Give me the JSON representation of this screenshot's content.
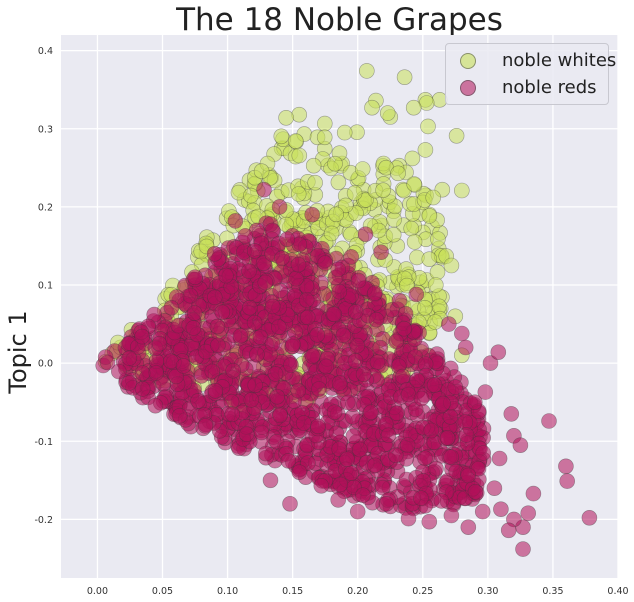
{
  "chart_data": {
    "type": "scatter",
    "title": "The 18 Noble Grapes",
    "xlabel": "",
    "ylabel": "Topic 1",
    "xlim": [
      -0.028,
      0.4
    ],
    "ylim": [
      -0.275,
      0.42
    ],
    "x_ticks": [
      "0.00",
      "0.05",
      "0.10",
      "0.15",
      "0.20",
      "0.25",
      "0.30",
      "0.35",
      "0.40"
    ],
    "y_ticks": [
      "-0.2",
      "-0.1",
      "0.0",
      "0.1",
      "0.2",
      "0.3",
      "0.4"
    ],
    "grid": true,
    "legend_position": "top-right",
    "series": [
      {
        "name": "noble whites",
        "color": "#c8e05a",
        "cloud": {
          "polygon": [
            [
              0.0,
              0.0
            ],
            [
              0.05,
              0.085
            ],
            [
              0.1,
              0.21
            ],
            [
              0.14,
              0.29
            ],
            [
              0.17,
              0.31
            ],
            [
              0.2,
              0.3
            ],
            [
              0.24,
              0.25
            ],
            [
              0.265,
              0.18
            ],
            [
              0.265,
              0.06
            ],
            [
              0.255,
              0.0
            ],
            [
              0.2,
              -0.04
            ],
            [
              0.12,
              -0.06
            ],
            [
              0.05,
              -0.03
            ]
          ],
          "count": 650
        },
        "points": [
          [
            0.207,
            0.374
          ],
          [
            0.236,
            0.366
          ],
          [
            0.214,
            0.336
          ],
          [
            0.211,
            0.327
          ],
          [
            0.225,
            0.315
          ],
          [
            0.252,
            0.337
          ],
          [
            0.263,
            0.337
          ],
          [
            0.253,
            0.333
          ],
          [
            0.243,
            0.327
          ],
          [
            0.223,
            0.32
          ],
          [
            0.155,
            0.318
          ],
          [
            0.145,
            0.314
          ],
          [
            0.254,
            0.303
          ],
          [
            0.276,
            0.291
          ],
          [
            0.252,
            0.273
          ],
          [
            0.242,
            0.262
          ],
          [
            0.265,
            0.222
          ],
          [
            0.28,
            0.221
          ],
          [
            0.258,
            0.212
          ],
          [
            0.268,
            0.137
          ],
          [
            0.272,
            0.125
          ],
          [
            0.255,
            0.133
          ],
          [
            0.26,
            0.1
          ],
          [
            0.275,
            0.06
          ],
          [
            0.28,
            0.01
          ],
          [
            0.247,
            0.052
          ],
          [
            0.24,
            0.031
          ]
        ]
      },
      {
        "name": "noble reds",
        "color": "#b0115a",
        "cloud": {
          "polygon": [
            [
              0.0,
              0.0
            ],
            [
              0.03,
              0.04
            ],
            [
              0.06,
              0.09
            ],
            [
              0.1,
              0.15
            ],
            [
              0.13,
              0.18
            ],
            [
              0.16,
              0.16
            ],
            [
              0.2,
              0.12
            ],
            [
              0.24,
              0.06
            ],
            [
              0.27,
              0.0
            ],
            [
              0.295,
              -0.06
            ],
            [
              0.3,
              -0.12
            ],
            [
              0.29,
              -0.18
            ],
            [
              0.26,
              -0.19
            ],
            [
              0.2,
              -0.18
            ],
            [
              0.14,
              -0.13
            ],
            [
              0.08,
              -0.09
            ],
            [
              0.03,
              -0.04
            ]
          ],
          "count": 1500
        },
        "points": [
          [
            0.378,
            -0.198
          ],
          [
            0.347,
            -0.074
          ],
          [
            0.327,
            -0.238
          ],
          [
            0.36,
            -0.132
          ],
          [
            0.361,
            -0.151
          ],
          [
            0.335,
            -0.167
          ],
          [
            0.331,
            -0.192
          ],
          [
            0.327,
            -0.21
          ],
          [
            0.32,
            -0.2
          ],
          [
            0.316,
            -0.214
          ],
          [
            0.31,
            -0.187
          ],
          [
            0.305,
            -0.16
          ],
          [
            0.309,
            -0.122
          ],
          [
            0.32,
            -0.093
          ],
          [
            0.325,
            -0.105
          ],
          [
            0.318,
            -0.065
          ],
          [
            0.298,
            -0.037
          ],
          [
            0.302,
            0.0
          ],
          [
            0.308,
            0.014
          ],
          [
            0.28,
            0.038
          ],
          [
            0.27,
            0.05
          ],
          [
            0.283,
            0.02
          ],
          [
            0.29,
            -0.05
          ],
          [
            0.296,
            -0.19
          ],
          [
            0.285,
            -0.21
          ],
          [
            0.272,
            -0.195
          ],
          [
            0.255,
            -0.203
          ],
          [
            0.239,
            -0.199
          ],
          [
            0.222,
            -0.18
          ],
          [
            0.2,
            -0.19
          ],
          [
            0.185,
            -0.175
          ],
          [
            0.172,
            -0.157
          ],
          [
            0.148,
            -0.18
          ],
          [
            0.133,
            -0.15
          ],
          [
            0.245,
            0.088
          ],
          [
            0.232,
            0.08
          ],
          [
            0.218,
            0.142
          ],
          [
            0.206,
            0.165
          ],
          [
            0.195,
            0.136
          ],
          [
            0.185,
            0.12
          ],
          [
            0.175,
            0.128
          ],
          [
            0.165,
            0.19
          ],
          [
            0.14,
            0.2
          ],
          [
            0.128,
            0.222
          ],
          [
            0.106,
            0.182
          ],
          [
            0.09,
            0.14
          ],
          [
            0.075,
            0.11
          ]
        ]
      }
    ]
  }
}
